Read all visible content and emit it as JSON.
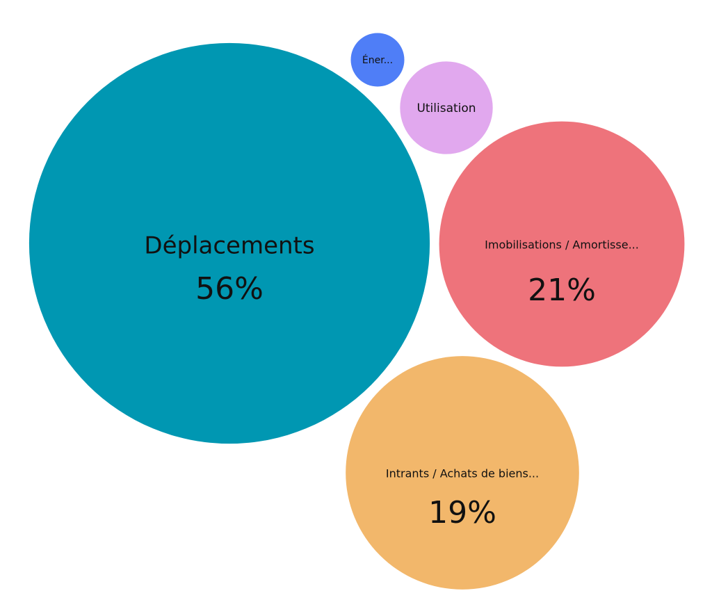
{
  "chart_data": {
    "type": "bubble",
    "categories": [
      "Déplacements",
      "Imobilisations / Amortisse...",
      "Intrants / Achats de biens...",
      "Utilisation",
      "Éner..."
    ],
    "values": [
      56,
      21,
      19,
      3,
      1
    ],
    "value_labels": [
      "56%",
      "21%",
      "19%",
      null,
      null
    ],
    "colors": [
      "#0097b2",
      "#ee737b",
      "#f2b76b",
      "#e1a8ee",
      "#4f7ef7"
    ]
  }
}
